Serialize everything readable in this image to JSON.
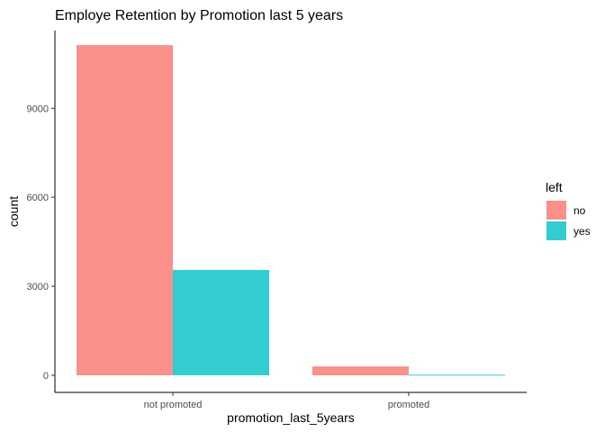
{
  "chart_data": {
    "type": "bar",
    "title": "Employe Retention by Promotion last 5 years",
    "xlabel": "promotion_last_5years",
    "ylabel": "count",
    "categories": [
      "not promoted",
      "promoted"
    ],
    "series": [
      {
        "name": "no",
        "color": "#F8766D",
        "values": [
          11128,
          300
        ]
      },
      {
        "name": "yes",
        "color": "#00BFC4",
        "values": [
          3552,
          19
        ]
      }
    ],
    "ylim": [
      0,
      11850
    ],
    "yticks": [
      0,
      3000,
      6000,
      9000
    ],
    "ytick_labels": [
      "0",
      "3000",
      "6000",
      "9000"
    ],
    "legend": {
      "title": "left",
      "position": "right"
    },
    "grid": false
  }
}
